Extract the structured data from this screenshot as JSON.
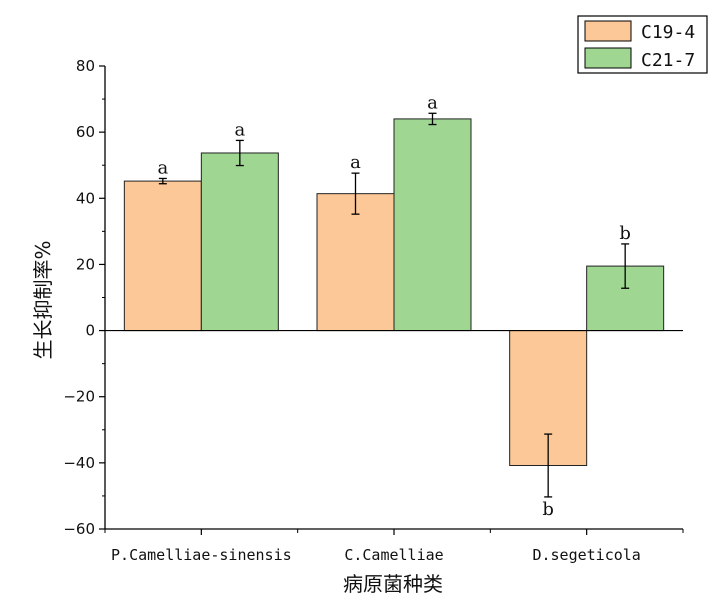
{
  "chart_data": {
    "type": "bar",
    "title": "",
    "xlabel": "病原菌种类",
    "ylabel": "生长抑制率%",
    "ylim": [
      -60,
      80
    ],
    "yticks": [
      -60,
      -40,
      -20,
      0,
      20,
      40,
      60,
      80
    ],
    "ytick_labels": [
      "−60",
      "−40",
      "−20",
      "0",
      "20",
      "40",
      "60",
      "80"
    ],
    "categories": [
      "P.Camelliae-sinensis",
      "C.Camelliae",
      "D.segeticola"
    ],
    "legend_position": "top-right",
    "series": [
      {
        "name": "C19-4",
        "color": "#FDC897",
        "values": [
          45.2,
          41.4,
          -40.8
        ],
        "errors": [
          0.8,
          6.2,
          9.5
        ],
        "labels": [
          "a",
          "a",
          "b"
        ]
      },
      {
        "name": "C21-7",
        "color": "#9ED692",
        "values": [
          53.7,
          64.0,
          19.5
        ],
        "errors": [
          3.8,
          1.7,
          6.7
        ],
        "labels": [
          "a",
          "a",
          "b"
        ]
      }
    ]
  }
}
